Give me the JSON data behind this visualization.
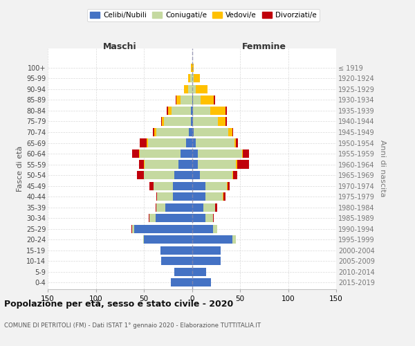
{
  "age_groups": [
    "0-4",
    "5-9",
    "10-14",
    "15-19",
    "20-24",
    "25-29",
    "30-34",
    "35-39",
    "40-44",
    "45-49",
    "50-54",
    "55-59",
    "60-64",
    "65-69",
    "70-74",
    "75-79",
    "80-84",
    "85-89",
    "90-94",
    "95-99",
    "100+"
  ],
  "birth_years": [
    "2015-2019",
    "2010-2014",
    "2005-2009",
    "2000-2004",
    "1995-1999",
    "1990-1994",
    "1985-1989",
    "1980-1984",
    "1975-1979",
    "1970-1974",
    "1965-1969",
    "1960-1964",
    "1955-1959",
    "1950-1954",
    "1945-1949",
    "1940-1944",
    "1935-1939",
    "1930-1934",
    "1925-1929",
    "1920-1924",
    "≤ 1919"
  ],
  "males": {
    "celibi": [
      22,
      18,
      32,
      33,
      50,
      60,
      38,
      28,
      20,
      20,
      18,
      14,
      12,
      6,
      3,
      1,
      1,
      0,
      0,
      0,
      0
    ],
    "coniugati": [
      0,
      0,
      0,
      0,
      1,
      2,
      6,
      9,
      16,
      20,
      32,
      35,
      42,
      40,
      34,
      28,
      20,
      12,
      4,
      2,
      0
    ],
    "vedovi": [
      0,
      0,
      0,
      0,
      0,
      0,
      0,
      0,
      0,
      0,
      0,
      1,
      1,
      1,
      2,
      2,
      4,
      4,
      4,
      2,
      1
    ],
    "divorziati": [
      0,
      0,
      0,
      0,
      0,
      1,
      1,
      1,
      1,
      4,
      7,
      5,
      7,
      7,
      2,
      1,
      1,
      1,
      0,
      0,
      0
    ]
  },
  "females": {
    "celibi": [
      20,
      15,
      30,
      30,
      42,
      22,
      14,
      12,
      14,
      14,
      8,
      6,
      6,
      4,
      2,
      1,
      1,
      1,
      0,
      0,
      0
    ],
    "coniugati": [
      0,
      0,
      0,
      0,
      4,
      4,
      8,
      12,
      18,
      22,
      34,
      40,
      46,
      40,
      36,
      26,
      18,
      8,
      4,
      2,
      0
    ],
    "vedovi": [
      0,
      0,
      0,
      0,
      0,
      0,
      0,
      0,
      1,
      1,
      1,
      1,
      1,
      2,
      4,
      8,
      16,
      14,
      12,
      6,
      2
    ],
    "divorziati": [
      0,
      0,
      0,
      0,
      0,
      0,
      1,
      2,
      2,
      2,
      4,
      12,
      6,
      2,
      1,
      1,
      1,
      1,
      0,
      0,
      0
    ]
  },
  "colors": {
    "celibi": "#4472c4",
    "coniugati": "#c5d9a0",
    "vedovi": "#ffc000",
    "divorziati": "#c0000b"
  },
  "legend_labels": [
    "Celibi/Nubili",
    "Coniugati/e",
    "Vedovi/e",
    "Divorziati/e"
  ],
  "xlim": 150,
  "title": "Popolazione per età, sesso e stato civile - 2020",
  "subtitle": "COMUNE DI PETRITOLI (FM) - Dati ISTAT 1° gennaio 2020 - Elaborazione TUTTITALIA.IT",
  "ylabel_left": "Fasce di età",
  "ylabel_right": "Anni di nascita",
  "xlabel_maschi": "Maschi",
  "xlabel_femmine": "Femmine",
  "bg_color": "#f2f2f2",
  "plot_bg": "#ffffff"
}
